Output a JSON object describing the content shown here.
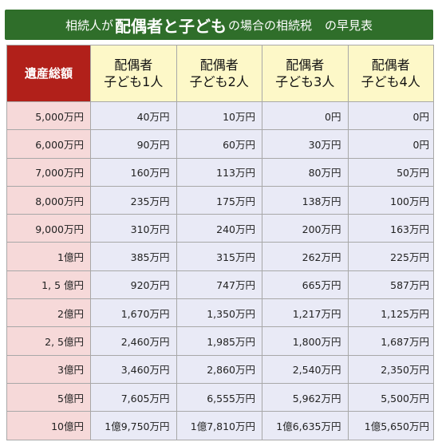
{
  "banner": {
    "part1": "相続人が",
    "part2": "配偶者と子ども",
    "part3": "の場合の相続税",
    "part4": "の早見表"
  },
  "table": {
    "corner": "遺産総額",
    "columns": [
      {
        "line1": "配偶者",
        "line2": "子ども1人"
      },
      {
        "line1": "配偶者",
        "line2": "子ども2人"
      },
      {
        "line1": "配偶者",
        "line2": "子ども3人"
      },
      {
        "line1": "配偶者",
        "line2": "子ども4人"
      }
    ],
    "rows": [
      {
        "estate": "5,000万円",
        "values": [
          "40万円",
          "10万円",
          "0円",
          "0円"
        ]
      },
      {
        "estate": "6,000万円",
        "values": [
          "90万円",
          "60万円",
          "30万円",
          "0円"
        ]
      },
      {
        "estate": "7,000万円",
        "values": [
          "160万円",
          "113万円",
          "80万円",
          "50万円"
        ]
      },
      {
        "estate": "8,000万円",
        "values": [
          "235万円",
          "175万円",
          "138万円",
          "100万円"
        ]
      },
      {
        "estate": "9,000万円",
        "values": [
          "310万円",
          "240万円",
          "200万円",
          "163万円"
        ]
      },
      {
        "estate": "1億円",
        "values": [
          "385万円",
          "315万円",
          "262万円",
          "225万円"
        ]
      },
      {
        "estate": "1, 5 億円",
        "values": [
          "920万円",
          "747万円",
          "665万円",
          "587万円"
        ]
      },
      {
        "estate": "2億円",
        "values": [
          "1,670万円",
          "1,350万円",
          "1,217万円",
          "1,125万円"
        ]
      },
      {
        "estate": "2, 5億円",
        "values": [
          "2,460万円",
          "1,985万円",
          "1,800万円",
          "1,687万円"
        ]
      },
      {
        "estate": "3億円",
        "values": [
          "3,460万円",
          "2,860万円",
          "2,540万円",
          "2,350万円"
        ]
      },
      {
        "estate": "5億円",
        "values": [
          "7,605万円",
          "6,555万円",
          "5,962万円",
          "5,500万円"
        ]
      },
      {
        "estate": "10億円",
        "values": [
          "1億9,750万円",
          "1億7,810万円",
          "1億6,635万円",
          "1億5,650万円"
        ]
      }
    ]
  },
  "colors": {
    "banner": "#2f6e2a",
    "corner": "#b1201a",
    "header": "#fdf8c8",
    "row_header": "#f6d9d9",
    "cell": "#e9eaf6"
  }
}
